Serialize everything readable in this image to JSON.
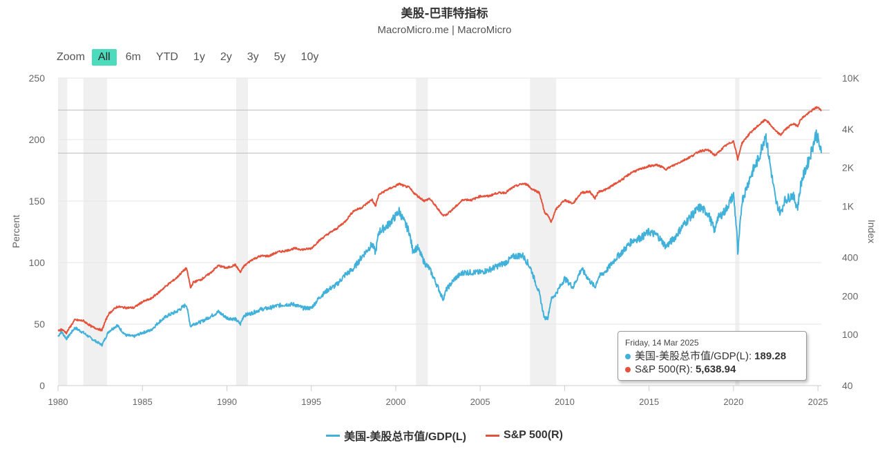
{
  "title": "美股-巴菲特指标",
  "subtitle": "MacroMicro.me | MacroMicro",
  "range_selector": {
    "zoom_label": "Zoom",
    "buttons": [
      "All",
      "6m",
      "YTD",
      "1y",
      "2y",
      "3y",
      "5y",
      "10y"
    ],
    "selected": "All",
    "active_color": "#4ddbbd"
  },
  "tooltip": {
    "date": "Friday, 14 Mar 2025",
    "rows": [
      {
        "label": "美国-美股总市值/GDP(L): ",
        "value": "189.28",
        "color": "#41b1d9"
      },
      {
        "label": "S&P 500(R): ",
        "value": "5,638.94",
        "color": "#e4523b"
      }
    ]
  },
  "legend": [
    {
      "label": "美国-美股总市值/GDP(L)",
      "color": "#41b1d9"
    },
    {
      "label": "S&P 500(R)",
      "color": "#e4523b"
    }
  ],
  "chart_data": {
    "type": "line",
    "x_ticks": [
      1980,
      1985,
      1990,
      1995,
      2000,
      2005,
      2010,
      2015,
      2020,
      2025
    ],
    "xlim": [
      1980.0,
      2025.2
    ],
    "left_axis": {
      "label": "Percent",
      "ticks": [
        0,
        50,
        100,
        150,
        200,
        250
      ],
      "ylim": [
        0,
        250
      ]
    },
    "right_axis": {
      "label": "Index",
      "scale": "log",
      "ticks": [
        40,
        100,
        200,
        400,
        "1K",
        "2K",
        "4K",
        "10K"
      ],
      "tick_values": [
        40,
        100,
        200,
        400,
        1000,
        2000,
        4000,
        10000
      ],
      "ylim": [
        40,
        10000
      ]
    },
    "recessions": [
      [
        1980.0,
        1980.55
      ],
      [
        1981.5,
        1982.9
      ],
      [
        1990.55,
        1991.25
      ],
      [
        2001.2,
        2001.9
      ],
      [
        2007.95,
        2009.5
      ],
      [
        2020.1,
        2020.35
      ]
    ],
    "reference_lines_left": [
      189,
      224
    ],
    "series": [
      {
        "name": "美国-美股总市值/GDP(L)",
        "axis": "left",
        "color": "#41b1d9",
        "x": [
          1980.0,
          1980.2,
          1980.5,
          1981.0,
          1981.5,
          1982.0,
          1982.6,
          1983.0,
          1983.5,
          1984.0,
          1984.5,
          1985.0,
          1985.5,
          1986.0,
          1986.5,
          1987.0,
          1987.6,
          1987.85,
          1988.0,
          1988.5,
          1989.0,
          1989.5,
          1990.0,
          1990.5,
          1990.8,
          1991.0,
          1991.5,
          1992.0,
          1992.5,
          1993.0,
          1993.5,
          1994.0,
          1994.5,
          1995.0,
          1995.5,
          1996.0,
          1996.5,
          1997.0,
          1997.5,
          1998.0,
          1998.6,
          1998.8,
          1999.0,
          1999.5,
          2000.0,
          2000.2,
          2000.5,
          2000.8,
          2001.0,
          2001.3,
          2001.7,
          2002.0,
          2002.5,
          2002.8,
          2003.0,
          2003.5,
          2004.0,
          2004.5,
          2005.0,
          2005.5,
          2006.0,
          2006.5,
          2007.0,
          2007.5,
          2007.8,
          2008.0,
          2008.5,
          2008.8,
          2009.0,
          2009.2,
          2009.5,
          2010.0,
          2010.5,
          2011.0,
          2011.5,
          2011.8,
          2012.0,
          2012.5,
          2013.0,
          2013.5,
          2014.0,
          2014.5,
          2015.0,
          2015.5,
          2016.0,
          2016.5,
          2017.0,
          2017.5,
          2018.0,
          2018.5,
          2018.9,
          2019.0,
          2019.5,
          2020.0,
          2020.2,
          2020.25,
          2020.5,
          2021.0,
          2021.5,
          2021.9,
          2022.0,
          2022.5,
          2022.8,
          2023.0,
          2023.5,
          2023.8,
          2024.0,
          2024.5,
          2024.9,
          2025.0,
          2025.2
        ],
        "values": [
          40,
          44,
          38,
          47,
          43,
          38,
          33,
          44,
          49,
          41,
          40,
          43,
          45,
          52,
          57,
          60,
          66,
          48,
          50,
          52,
          56,
          60,
          55,
          54,
          50,
          57,
          59,
          62,
          63,
          65,
          66,
          66,
          63,
          63,
          72,
          78,
          82,
          90,
          95,
          105,
          115,
          108,
          125,
          130,
          138,
          142,
          133,
          125,
          110,
          112,
          100,
          95,
          80,
          70,
          78,
          87,
          92,
          92,
          92,
          94,
          97,
          100,
          105,
          106,
          100,
          95,
          75,
          55,
          55,
          70,
          75,
          87,
          80,
          95,
          85,
          80,
          88,
          94,
          103,
          110,
          118,
          120,
          125,
          122,
          113,
          120,
          130,
          138,
          145,
          140,
          125,
          135,
          142,
          155,
          125,
          105,
          150,
          170,
          185,
          205,
          195,
          150,
          140,
          150,
          155,
          145,
          165,
          185,
          205,
          200,
          189
        ]
      },
      {
        "name": "S&P 500(R)",
        "axis": "right",
        "color": "#e4523b",
        "x": [
          1980.0,
          1980.2,
          1980.5,
          1981.0,
          1981.5,
          1982.0,
          1982.6,
          1983.0,
          1983.5,
          1984.0,
          1984.5,
          1985.0,
          1985.5,
          1986.0,
          1986.5,
          1987.0,
          1987.6,
          1987.85,
          1988.0,
          1988.5,
          1989.0,
          1989.5,
          1990.0,
          1990.5,
          1990.8,
          1991.0,
          1991.5,
          1992.0,
          1992.5,
          1993.0,
          1993.5,
          1994.0,
          1994.5,
          1995.0,
          1995.5,
          1996.0,
          1996.5,
          1997.0,
          1997.5,
          1998.0,
          1998.6,
          1998.8,
          1999.0,
          1999.5,
          2000.0,
          2000.2,
          2000.5,
          2000.8,
          2001.0,
          2001.3,
          2001.7,
          2002.0,
          2002.5,
          2002.8,
          2003.0,
          2003.5,
          2004.0,
          2004.5,
          2005.0,
          2005.5,
          2006.0,
          2006.5,
          2007.0,
          2007.5,
          2007.8,
          2008.0,
          2008.5,
          2008.8,
          2009.0,
          2009.2,
          2009.5,
          2010.0,
          2010.5,
          2011.0,
          2011.5,
          2011.8,
          2012.0,
          2012.5,
          2013.0,
          2013.5,
          2014.0,
          2014.5,
          2015.0,
          2015.5,
          2016.0,
          2016.5,
          2017.0,
          2017.5,
          2018.0,
          2018.5,
          2018.9,
          2019.0,
          2019.5,
          2020.0,
          2020.2,
          2020.25,
          2020.5,
          2021.0,
          2021.5,
          2021.9,
          2022.0,
          2022.5,
          2022.8,
          2023.0,
          2023.5,
          2023.8,
          2024.0,
          2024.5,
          2024.9,
          2025.0,
          2025.2
        ],
        "values": [
          107,
          110,
          103,
          130,
          128,
          115,
          108,
          145,
          165,
          162,
          162,
          180,
          190,
          215,
          245,
          275,
          330,
          230,
          255,
          270,
          300,
          345,
          330,
          350,
          305,
          340,
          385,
          410,
          410,
          440,
          450,
          470,
          460,
          470,
          545,
          610,
          670,
          760,
          920,
          980,
          1130,
          1000,
          1230,
          1350,
          1440,
          1500,
          1440,
          1400,
          1300,
          1200,
          1100,
          1150,
          950,
          850,
          860,
          980,
          1130,
          1120,
          1200,
          1200,
          1270,
          1280,
          1420,
          1500,
          1480,
          1380,
          1280,
          900,
          850,
          750,
          950,
          1120,
          1050,
          1280,
          1300,
          1150,
          1300,
          1360,
          1500,
          1650,
          1850,
          1950,
          2060,
          2100,
          1950,
          2100,
          2270,
          2450,
          2700,
          2750,
          2500,
          2550,
          2950,
          3230,
          2500,
          2300,
          3100,
          3750,
          4300,
          4750,
          4600,
          3850,
          3600,
          3900,
          4400,
          4250,
          4800,
          5400,
          5900,
          5880,
          5640
        ]
      }
    ]
  }
}
